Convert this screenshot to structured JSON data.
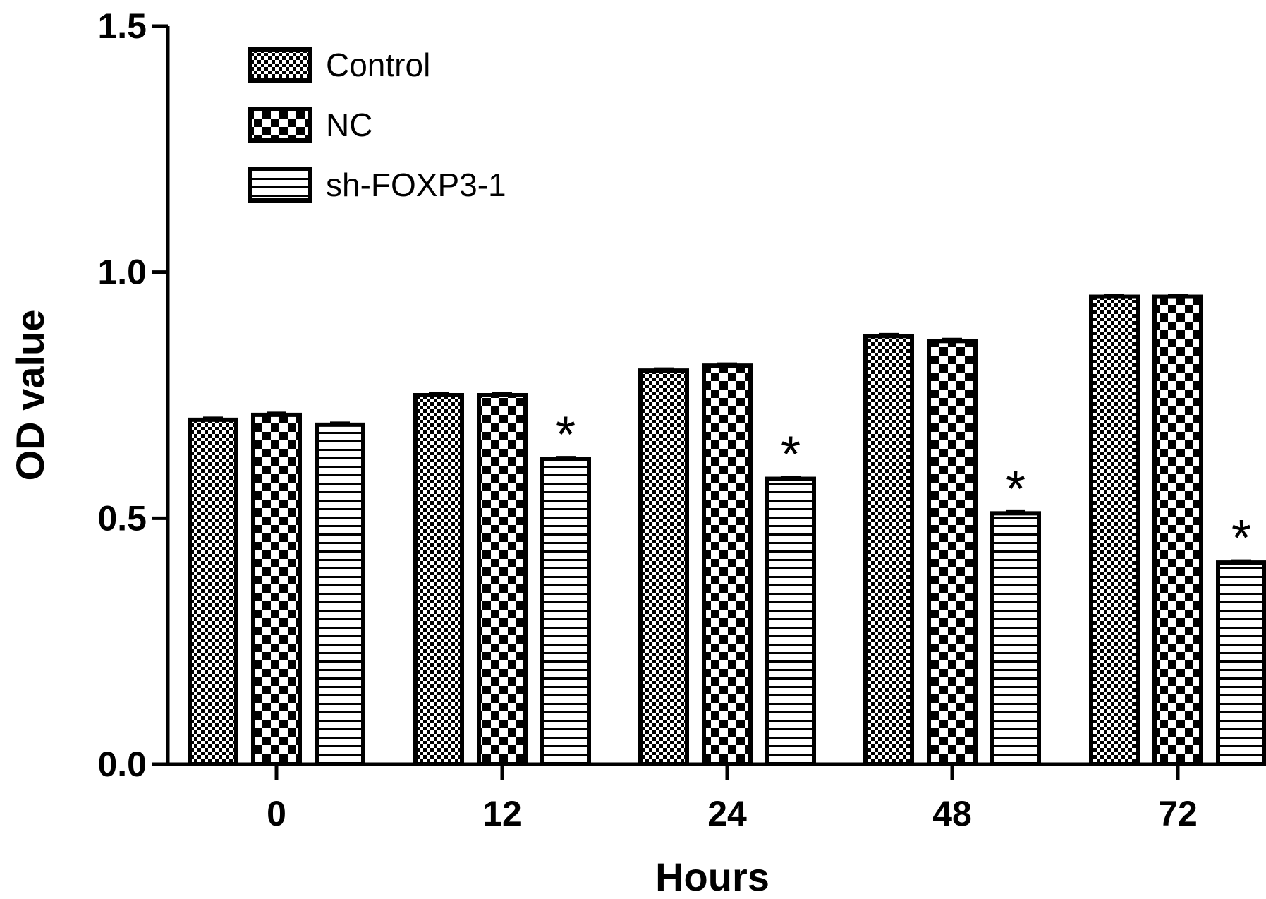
{
  "chart_data": {
    "type": "bar",
    "xlabel": "Hours",
    "ylabel": "OD value",
    "categories": [
      "0",
      "12",
      "24",
      "48",
      "72"
    ],
    "ylim": [
      0,
      1.5
    ],
    "yticks": [
      0.0,
      0.5,
      1.0,
      1.5
    ],
    "ytick_labels": [
      "0.0",
      "0.5",
      "1.0",
      "1.5"
    ],
    "grid": false,
    "legend_position": "top-left",
    "series": [
      {
        "name": "Control",
        "pattern": "fine-checker",
        "values": [
          0.7,
          0.75,
          0.8,
          0.87,
          0.95
        ]
      },
      {
        "name": "NC",
        "pattern": "coarse-checker",
        "values": [
          0.71,
          0.75,
          0.81,
          0.86,
          0.95
        ]
      },
      {
        "name": "sh-FOXP3-1",
        "pattern": "horizontal-stripes",
        "values": [
          0.69,
          0.62,
          0.58,
          0.51,
          0.41
        ]
      }
    ],
    "annotations": [
      {
        "series": "sh-FOXP3-1",
        "category": "12",
        "text": "*"
      },
      {
        "series": "sh-FOXP3-1",
        "category": "24",
        "text": "*"
      },
      {
        "series": "sh-FOXP3-1",
        "category": "48",
        "text": "*"
      },
      {
        "series": "sh-FOXP3-1",
        "category": "72",
        "text": "*"
      }
    ],
    "colors": {
      "bar_stroke": "#000000",
      "fill": "#000000",
      "background": "#ffffff"
    }
  }
}
